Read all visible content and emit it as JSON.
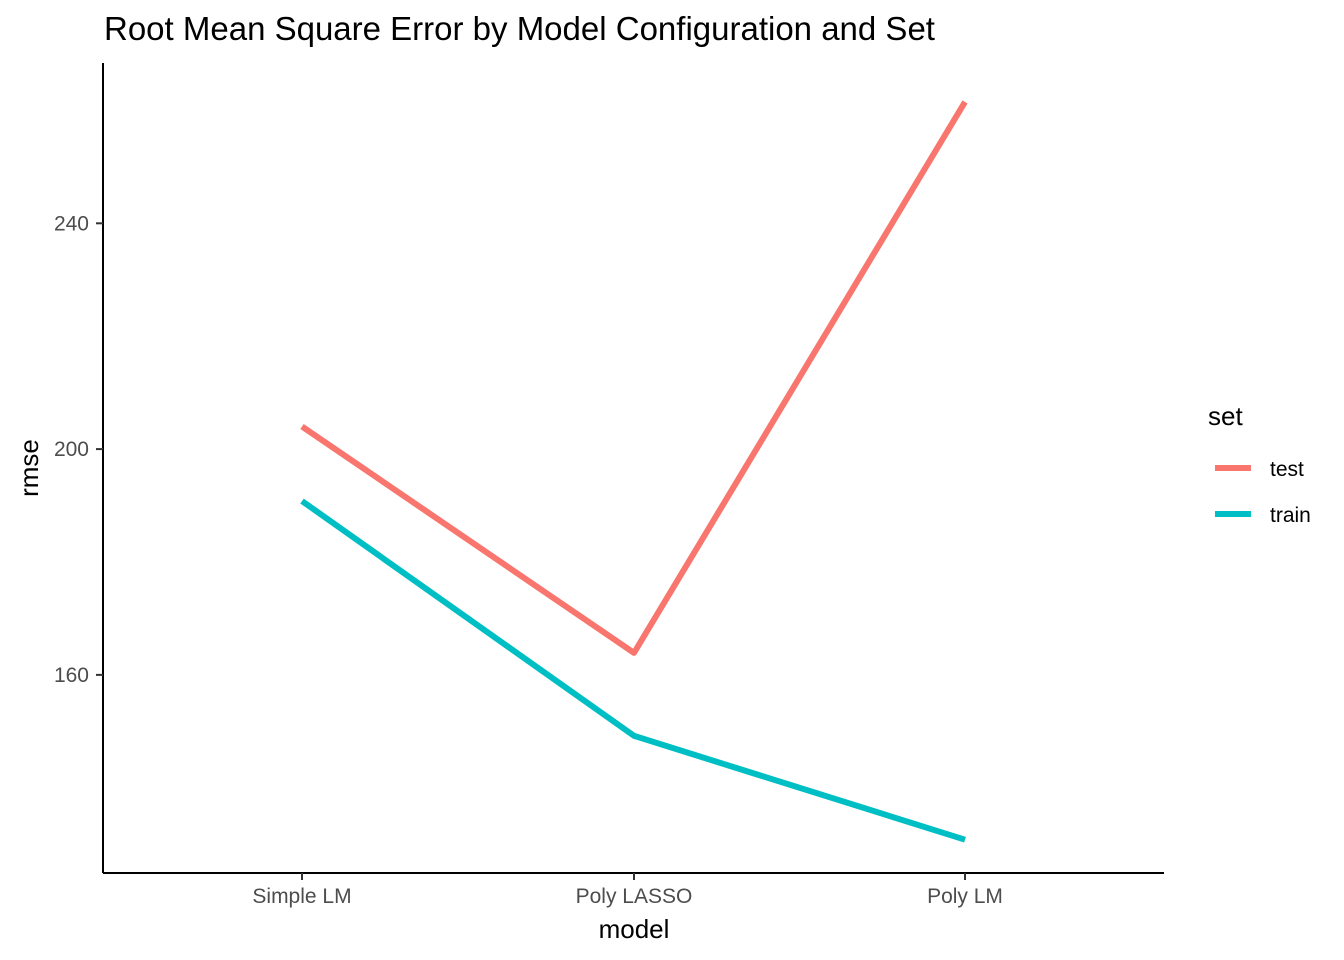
{
  "chart_data": {
    "type": "line",
    "title": "Root Mean Square Error by Model Configuration and Set",
    "xlabel": "model",
    "ylabel": "rmse",
    "categories": [
      "Simple LM",
      "Poly LASSO",
      "Poly LM"
    ],
    "yticks": [
      "160",
      "200",
      "240"
    ],
    "ytick_values": [
      160,
      200,
      240
    ],
    "ylim": [
      124.9,
      268.4
    ],
    "grid": false,
    "legend": {
      "title": "set",
      "placement": "right"
    },
    "series": [
      {
        "name": "test",
        "color": "#F8766D",
        "values": [
          204.0,
          163.9,
          261.5
        ]
      },
      {
        "name": "train",
        "color": "#00BFC4",
        "values": [
          190.8,
          149.2,
          130.8
        ]
      }
    ]
  }
}
